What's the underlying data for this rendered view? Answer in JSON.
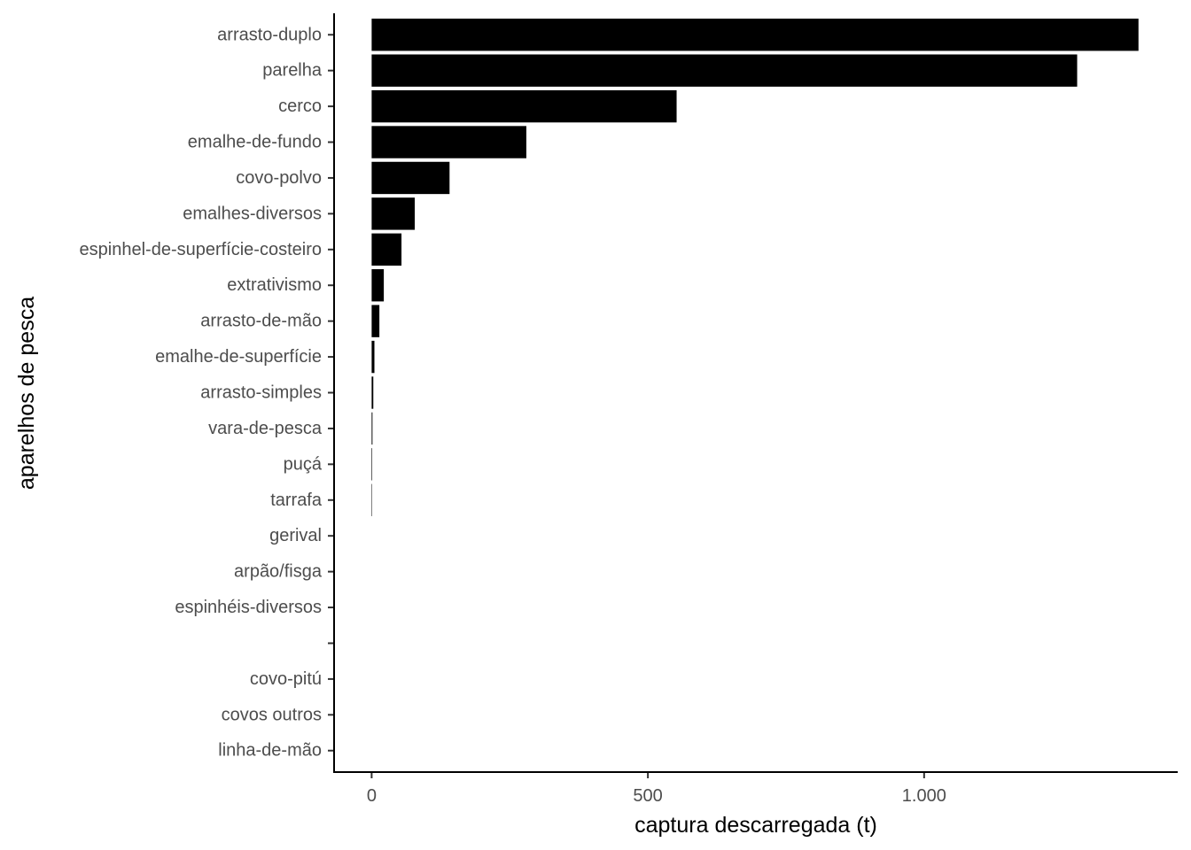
{
  "chart_data": {
    "type": "bar",
    "orientation": "horizontal",
    "xlabel": "captura descarregada (t)",
    "ylabel": "aparelhos de pesca",
    "categories": [
      "arrasto-duplo",
      "parelha",
      "cerco",
      "emalhe-de-fundo",
      "covo-polvo",
      "emalhes-diversos",
      "espinhel-de-superfície-costeiro",
      "extrativismo",
      "arrasto-de-mão",
      "emalhe-de-superfície",
      "arrasto-simples",
      "vara-de-pesca",
      "puçá",
      "tarrafa",
      "gerival",
      "arpão/fisga",
      "espinhéis-diversos",
      "",
      "covo-pitú",
      "covos outros",
      "linha-de-mão"
    ],
    "values": [
      1388,
      1277,
      552,
      280,
      141,
      78,
      54,
      22,
      14,
      5,
      3,
      1.5,
      1,
      0.8,
      0,
      0,
      0,
      0,
      0,
      0,
      0
    ],
    "xlim": [
      -68,
      1459
    ],
    "xticks": [
      0,
      500,
      1000
    ],
    "xtick_labels": [
      "0",
      "500",
      "1.000"
    ],
    "bar_color": "#000000",
    "grid": false,
    "legend": "none"
  }
}
